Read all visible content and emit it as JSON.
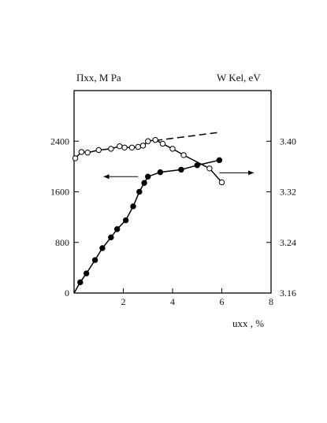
{
  "chart_data": {
    "type": "line",
    "ylabel_left": "Πxx, M Pa",
    "ylabel_right": "W Kel, eV",
    "xlabel": "uxx , %",
    "xlim": [
      0,
      8
    ],
    "ylim_left": [
      0,
      3200
    ],
    "ylim_right": [
      3.16,
      3.48
    ],
    "x_ticks": [
      "2",
      "4",
      "6",
      "8"
    ],
    "y_ticks_left": [
      "0",
      "800",
      "1600",
      "2400"
    ],
    "y_ticks_right": [
      "3.16",
      "3.24",
      "3.32",
      "3.40"
    ],
    "series": [
      {
        "marker": "filled-circle",
        "axis": "left",
        "x": [
          0.25,
          0.5,
          0.85,
          1.15,
          1.5,
          1.75,
          2.1,
          2.4,
          2.65,
          2.85,
          3.0,
          3.5,
          4.35,
          5.0,
          5.9
        ],
        "y": [
          170,
          310,
          520,
          710,
          880,
          1010,
          1150,
          1370,
          1600,
          1740,
          1840,
          1910,
          1950,
          2020,
          2100
        ]
      },
      {
        "marker": "open-circle",
        "axis": "right",
        "x": [
          0.05,
          0.3,
          0.55,
          1.0,
          1.5,
          1.85,
          2.05,
          2.35,
          2.6,
          2.8,
          3.0,
          3.3,
          3.6,
          4.0,
          4.45,
          5.5,
          6.0
        ],
        "y": [
          3.373,
          3.383,
          3.382,
          3.386,
          3.388,
          3.392,
          3.39,
          3.39,
          3.391,
          3.393,
          3.4,
          3.402,
          3.396,
          3.388,
          3.378,
          3.357,
          3.335
        ]
      }
    ],
    "dashed_extension": {
      "axis": "right",
      "x": [
        3.3,
        5.9
      ],
      "y": [
        3.401,
        3.414
      ]
    },
    "arrows": [
      {
        "direction": "left",
        "points_to_axis": "left",
        "x_from": 2.6,
        "x_to": 1.2,
        "y": 1840
      },
      {
        "direction": "right",
        "points_to_axis": "right",
        "x_from": 5.9,
        "x_to": 7.3,
        "y": 1900
      }
    ]
  }
}
